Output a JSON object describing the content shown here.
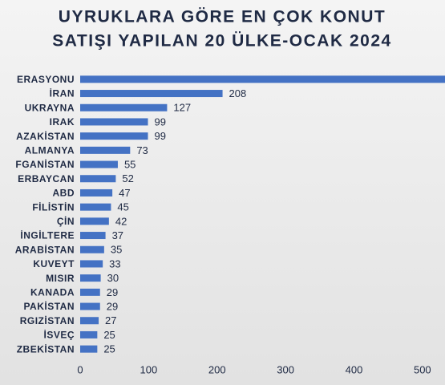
{
  "chart_data": {
    "type": "hbar",
    "title_lines": [
      "UYRUKLARA GÖRE EN ÇOK KONUT",
      "SATIŞI YAPILAN 20 ÜLKE-OCAK 2024"
    ],
    "categories": [
      "ERASYONU",
      "İRAN",
      "UKRAYNA",
      "IRAK",
      "AZAKİSTAN",
      "ALMANYA",
      "FGANİSTAN",
      "ERBAYCAN",
      "ABD",
      "FİLİSTİN",
      "ÇİN",
      "İNGİLTERE",
      "ARABİSTAN",
      "KUVEYT",
      "MISIR",
      "KANADA",
      "PAKİSTAN",
      "RGIZİSTAN",
      "İSVEÇ",
      "ZBEKİSTAN"
    ],
    "values": [
      540,
      208,
      127,
      99,
      99,
      73,
      55,
      52,
      47,
      45,
      42,
      37,
      35,
      33,
      30,
      29,
      29,
      27,
      25,
      25
    ],
    "color": "#4472c4",
    "xlim": [
      0,
      533
    ],
    "xticks": [
      0,
      100,
      200,
      300,
      400,
      500
    ],
    "grid": false
  }
}
